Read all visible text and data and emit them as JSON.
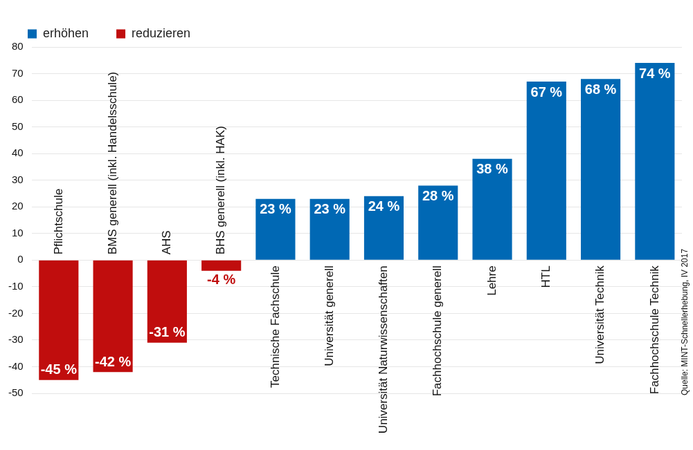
{
  "chart_data": {
    "type": "bar",
    "categories": [
      "Pflichtschule",
      "BMS generell (inkl. Handelsschule)",
      "AHS",
      "BHS generell (inkl. HAK)",
      "Technische Fachschule",
      "Universität generell",
      "Universität Naturwissenschaften",
      "Fachhochschule generell",
      "Lehre",
      "HTL",
      "Universität Technik",
      "Fachhochschule Technik"
    ],
    "series": [
      {
        "name": "erhöhen",
        "color": "#0068b4",
        "values": [
          null,
          null,
          null,
          null,
          23,
          23,
          24,
          28,
          38,
          67,
          68,
          74
        ],
        "value_labels": [
          null,
          null,
          null,
          null,
          "23 %",
          "23 %",
          "24 %",
          "28 %",
          "38 %",
          "67 %",
          "68 %",
          "74 %"
        ]
      },
      {
        "name": "reduzieren",
        "color": "#c00d0d",
        "values": [
          -45,
          -42,
          -31,
          -4,
          null,
          null,
          null,
          null,
          null,
          null,
          null,
          null
        ],
        "value_labels": [
          "-45 %",
          "-42 %",
          "-31 %",
          "-4 %",
          null,
          null,
          null,
          null,
          null,
          null,
          null,
          null
        ]
      }
    ],
    "ylim": [
      -50,
      80
    ],
    "yticks": [
      -50,
      -40,
      -30,
      -20,
      -10,
      0,
      10,
      20,
      30,
      40,
      50,
      60,
      70,
      80
    ],
    "grid": "y",
    "legend": "top left",
    "annotations": [
      "Quelle: MINT-Schnellerhebung, IV 2017"
    ]
  }
}
